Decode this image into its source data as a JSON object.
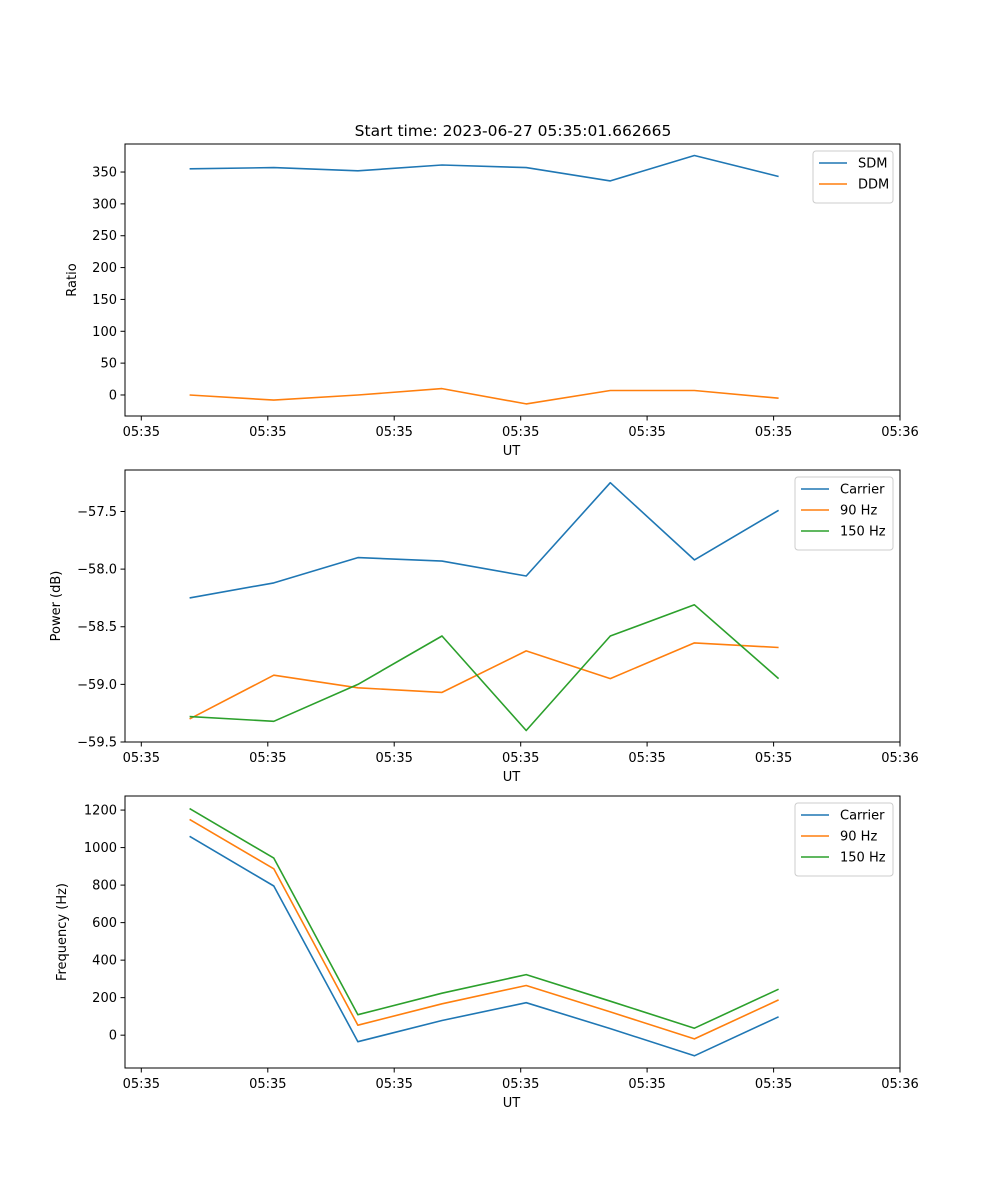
{
  "figure": {
    "title": "Start time: 2023-06-27 05:35:01.662665"
  },
  "chart_data": [
    {
      "type": "line",
      "xlabel": "UT",
      "ylabel": "Ratio",
      "x_ticks": [
        "05:35",
        "05:35",
        "05:35",
        "05:35",
        "05:35",
        "05:35",
        "05:36"
      ],
      "y_ticks": [
        "0",
        "50",
        "100",
        "150",
        "200",
        "250",
        "300",
        "350"
      ],
      "ylim": [
        -33,
        394
      ],
      "grid": false,
      "legend_position": "top-right",
      "x": [
        1,
        2,
        3,
        4,
        5,
        6,
        7,
        8
      ],
      "series": [
        {
          "name": "SDM",
          "color": "#1f77b4",
          "values": [
            355,
            357,
            352,
            361,
            357,
            336,
            376,
            343
          ]
        },
        {
          "name": "DDM",
          "color": "#ff7f0e",
          "values": [
            0,
            -8,
            0,
            10,
            -14,
            7,
            7,
            -5
          ]
        }
      ]
    },
    {
      "type": "line",
      "xlabel": "UT",
      "ylabel": "Power (dB)",
      "x_ticks": [
        "05:35",
        "05:35",
        "05:35",
        "05:35",
        "05:35",
        "05:35",
        "05:36"
      ],
      "y_ticks": [
        "−59.5",
        "−59.0",
        "−58.5",
        "−58.0",
        "−57.5"
      ],
      "ylim": [
        -59.5,
        -57.14
      ],
      "grid": false,
      "legend_position": "top-right",
      "x": [
        1,
        2,
        3,
        4,
        5,
        6,
        7,
        8
      ],
      "series": [
        {
          "name": "Carrier",
          "color": "#1f77b4",
          "values": [
            -58.25,
            -58.12,
            -57.9,
            -57.93,
            -58.06,
            -57.25,
            -57.92,
            -57.49
          ]
        },
        {
          "name": "90 Hz",
          "color": "#ff7f0e",
          "values": [
            -59.3,
            -58.92,
            -59.03,
            -59.07,
            -58.71,
            -58.95,
            -58.64,
            -58.68
          ]
        },
        {
          "name": "150 Hz",
          "color": "#2ca02c",
          "values": [
            -59.28,
            -59.32,
            -59.0,
            -58.58,
            -59.4,
            -58.58,
            -58.31,
            -58.95
          ]
        }
      ]
    },
    {
      "type": "line",
      "xlabel": "UT",
      "ylabel": "Frequency (Hz)",
      "x_ticks": [
        "05:35",
        "05:35",
        "05:35",
        "05:35",
        "05:35",
        "05:35",
        "05:36"
      ],
      "y_ticks": [
        "0",
        "200",
        "400",
        "600",
        "800",
        "1000",
        "1200"
      ],
      "ylim": [
        -175,
        1275
      ],
      "grid": false,
      "legend_position": "top-right",
      "x": [
        1,
        2,
        3,
        4,
        5,
        6,
        7,
        8
      ],
      "series": [
        {
          "name": "Carrier",
          "color": "#1f77b4",
          "values": [
            1060,
            795,
            -35,
            78,
            173,
            35,
            -110,
            98
          ]
        },
        {
          "name": "90 Hz",
          "color": "#ff7f0e",
          "values": [
            1150,
            887,
            53,
            167,
            265,
            124,
            -20,
            188
          ]
        },
        {
          "name": "150 Hz",
          "color": "#2ca02c",
          "values": [
            1208,
            944,
            109,
            224,
            323,
            181,
            37,
            245
          ]
        }
      ]
    }
  ]
}
